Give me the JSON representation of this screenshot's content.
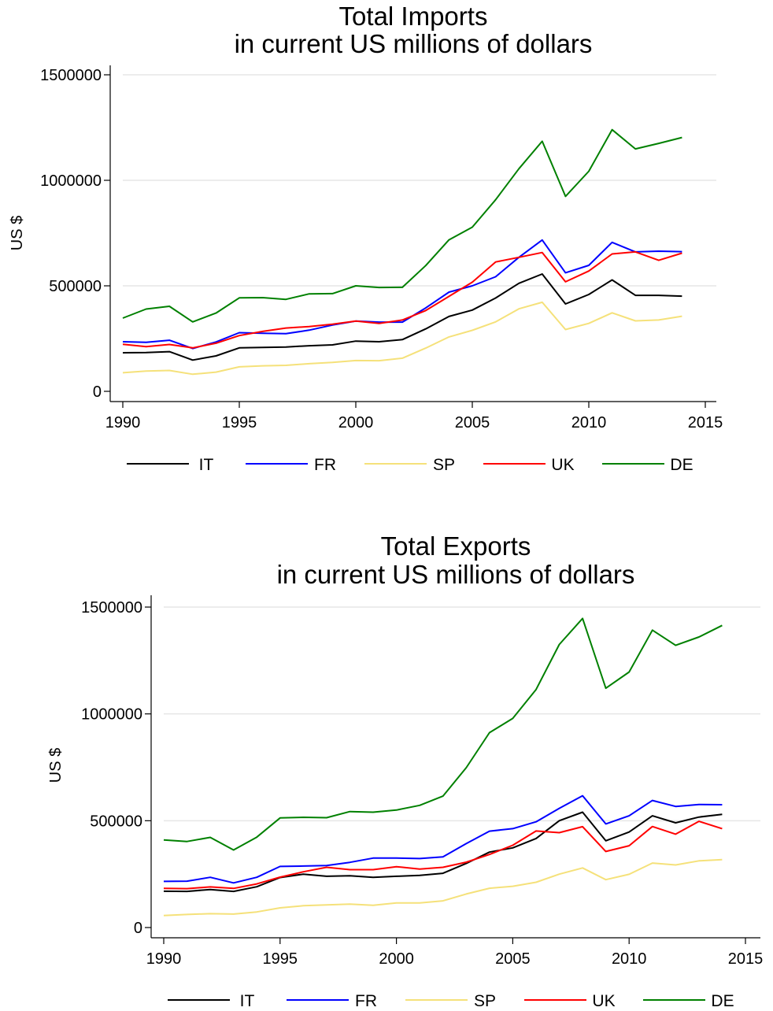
{
  "chart_data": [
    {
      "type": "line",
      "title": "Total Imports",
      "subtitle": "in current US millions of dollars",
      "xlabel": "",
      "ylabel": "US $",
      "xlim": [
        1990,
        2015
      ],
      "ylim": [
        0,
        1500000
      ],
      "xticks": [
        "1990",
        "1995",
        "2000",
        "2005",
        "2010",
        "2015"
      ],
      "yticks": [
        "0",
        "500000",
        "1000000",
        "1500000"
      ],
      "grid": true,
      "legend": "bottom",
      "x": [
        1990,
        1991,
        1992,
        1993,
        1994,
        1995,
        1996,
        1997,
        1998,
        1999,
        2000,
        2001,
        2002,
        2003,
        2004,
        2005,
        2006,
        2007,
        2008,
        2009,
        2010,
        2011,
        2012,
        2013,
        2014
      ],
      "series": [
        {
          "name": "IT",
          "color": "#000000",
          "values": [
            183000,
            184000,
            188000,
            148000,
            168000,
            206000,
            208000,
            210000,
            216000,
            220000,
            238000,
            235000,
            245000,
            296000,
            355000,
            385000,
            442000,
            512000,
            556000,
            414000,
            459000,
            528000,
            455000,
            455000,
            451000
          ]
        },
        {
          "name": "FR",
          "color": "#0000ff",
          "values": [
            235000,
            232000,
            242000,
            203000,
            234000,
            278000,
            275000,
            273000,
            290000,
            314000,
            333000,
            328000,
            328000,
            395000,
            470000,
            500000,
            543000,
            635000,
            717000,
            562000,
            597000,
            706000,
            661000,
            664000,
            662000
          ]
        },
        {
          "name": "SP",
          "color": "#f5e17a",
          "values": [
            88000,
            96000,
            99000,
            81000,
            91000,
            116000,
            121000,
            123000,
            131000,
            137000,
            146000,
            145000,
            157000,
            205000,
            258000,
            289000,
            329000,
            391000,
            422000,
            293000,
            322000,
            372000,
            334000,
            338000,
            356000
          ]
        },
        {
          "name": "UK",
          "color": "#ff0000",
          "values": [
            223000,
            212000,
            222000,
            206000,
            228000,
            264000,
            284000,
            300000,
            307000,
            318000,
            333000,
            322000,
            338000,
            383000,
            450000,
            517000,
            613000,
            635000,
            658000,
            519000,
            570000,
            651000,
            661000,
            621000,
            655000
          ]
        },
        {
          "name": "DE",
          "color": "#008000",
          "values": [
            347000,
            390000,
            403000,
            329000,
            371000,
            443000,
            444000,
            436000,
            462000,
            463000,
            500000,
            492000,
            493000,
            596000,
            718000,
            778000,
            908000,
            1055000,
            1185000,
            924000,
            1043000,
            1240000,
            1149000,
            1175000,
            1203000
          ]
        }
      ]
    },
    {
      "type": "line",
      "title": "Total Exports",
      "subtitle": "in current US millions of dollars",
      "xlabel": "",
      "ylabel": "US $",
      "xlim": [
        1990,
        2015
      ],
      "ylim": [
        0,
        1500000
      ],
      "xticks": [
        "1990",
        "1995",
        "2000",
        "2005",
        "2010",
        "2015"
      ],
      "yticks": [
        "0",
        "500000",
        "1000000",
        "1500000"
      ],
      "grid": true,
      "legend": "bottom",
      "x": [
        1990,
        1991,
        1992,
        1993,
        1994,
        1995,
        1996,
        1997,
        1998,
        1999,
        2000,
        2001,
        2002,
        2003,
        2004,
        2005,
        2006,
        2007,
        2008,
        2009,
        2010,
        2011,
        2012,
        2013,
        2014
      ],
      "series": [
        {
          "name": "IT",
          "color": "#000000",
          "values": [
            170000,
            169000,
            178000,
            169000,
            191000,
            234000,
            250000,
            240000,
            242000,
            235000,
            240000,
            244000,
            254000,
            300000,
            353000,
            373000,
            417000,
            500000,
            540000,
            406000,
            447000,
            523000,
            490000,
            517000,
            530000
          ]
        },
        {
          "name": "FR",
          "color": "#0000ff",
          "values": [
            216000,
            217000,
            235000,
            209000,
            235000,
            286000,
            288000,
            290000,
            305000,
            325000,
            325000,
            323000,
            331000,
            393000,
            451000,
            463000,
            495000,
            558000,
            617000,
            485000,
            523000,
            595000,
            567000,
            576000,
            575000
          ]
        },
        {
          "name": "SP",
          "color": "#f5e17a",
          "values": [
            56000,
            61000,
            65000,
            63000,
            73000,
            92000,
            102000,
            106000,
            110000,
            104000,
            115000,
            115000,
            125000,
            157000,
            184000,
            193000,
            212000,
            250000,
            279000,
            224000,
            249000,
            302000,
            293000,
            312000,
            318000
          ]
        },
        {
          "name": "UK",
          "color": "#ff0000",
          "values": [
            183000,
            182000,
            190000,
            183000,
            204000,
            236000,
            261000,
            282000,
            271000,
            271000,
            285000,
            274000,
            282000,
            306000,
            342000,
            385000,
            452000,
            444000,
            472000,
            356000,
            383000,
            473000,
            437000,
            497000,
            463000
          ]
        },
        {
          "name": "DE",
          "color": "#008000",
          "values": [
            410000,
            403000,
            422000,
            363000,
            423000,
            513000,
            516000,
            514000,
            543000,
            540000,
            550000,
            572000,
            615000,
            748000,
            912000,
            979000,
            1114000,
            1325000,
            1447000,
            1120000,
            1196000,
            1392000,
            1321000,
            1360000,
            1414000
          ]
        }
      ]
    }
  ]
}
